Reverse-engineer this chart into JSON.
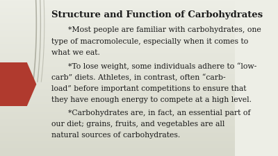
{
  "title": "Structure and Function of Carbohydrates",
  "bg_color_top": "#edeee6",
  "bg_color_bottom": "#d8d9cc",
  "arrow_color": "#b03a2e",
  "line_color": "#aaaaaa",
  "text_color": "#1a1a1a",
  "title_fontsize": 9.5,
  "body_fontsize": 7.8,
  "paragraphs": [
    "*Most people are familiar with carbohydrates, one type of macromolecule, especially when it comes to what we eat.",
    "*To lose weight, some individuals adhere to “low-carb” diets. Athletes, in contrast, often “carb-load” before important competitions to ensure that they have enough energy to compete at a high level.",
    "*Carbohydrates are, in fact, an essential part of our diet; grains, fruits, and vegetables are all natural sources of carbohydrates."
  ]
}
